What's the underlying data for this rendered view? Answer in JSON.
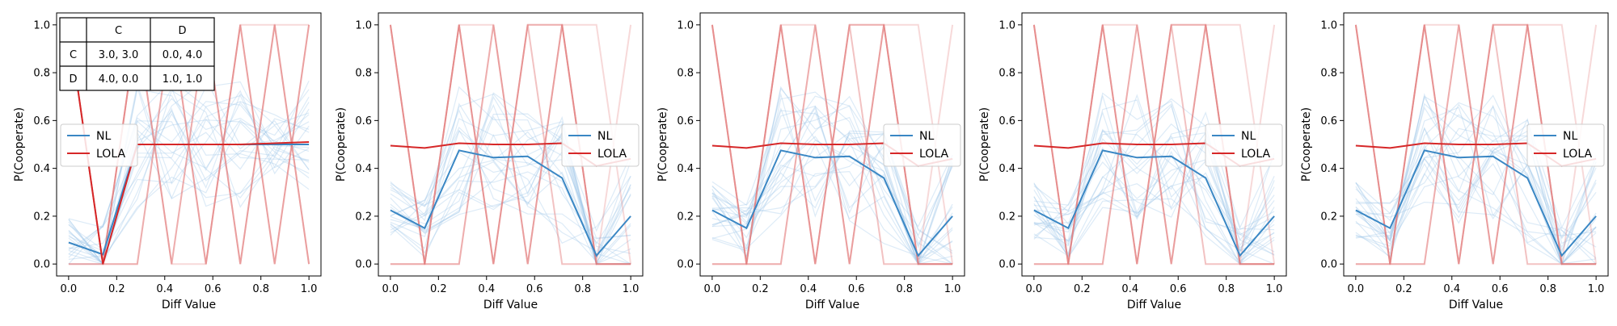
{
  "payoff_table": {
    "col_headers": [
      "",
      "C",
      "D"
    ],
    "rows": [
      {
        "label": "C",
        "cells": [
          "3.0, 3.0",
          "0.0, 4.0"
        ]
      },
      {
        "label": "D",
        "cells": [
          "4.0, 0.0",
          "1.0, 1.0"
        ]
      }
    ]
  },
  "colors": {
    "nl": "#3a87c4",
    "lola": "#d62728",
    "nl_faint": "#9ec5e8",
    "lola_faint": "#e37777"
  },
  "chart_data": [
    {
      "type": "line",
      "xlabel": "Diff Value",
      "ylabel": "P(Cooperate)",
      "xlim": [
        -0.05,
        1.05
      ],
      "ylim": [
        -0.05,
        1.05
      ],
      "xticks": [
        "0.0",
        "0.2",
        "0.4",
        "0.6",
        "0.8",
        "1.0"
      ],
      "yticks": [
        "0.0",
        "0.2",
        "0.4",
        "0.6",
        "0.8",
        "1.0"
      ],
      "legend": "center-left",
      "x": [
        0,
        0.1429,
        0.2857,
        0.4286,
        0.5714,
        0.7143,
        0.8571,
        1.0
      ],
      "series": [
        {
          "name": "NL",
          "values": [
            0.09,
            0.04,
            0.5,
            0.5,
            0.5,
            0.5,
            0.5,
            0.5
          ]
        },
        {
          "name": "LOLA",
          "values": [
            1.0,
            0.0,
            0.5,
            0.5,
            0.5,
            0.5,
            0.505,
            0.51
          ]
        }
      ]
    },
    {
      "type": "line",
      "xlabel": "Diff Value",
      "ylabel": "P(Cooperate)",
      "xlim": [
        -0.05,
        1.05
      ],
      "ylim": [
        -0.05,
        1.05
      ],
      "xticks": [
        "0.0",
        "0.2",
        "0.4",
        "0.6",
        "0.8",
        "1.0"
      ],
      "yticks": [
        "0.0",
        "0.2",
        "0.4",
        "0.6",
        "0.8",
        "1.0"
      ],
      "legend": "center-right",
      "x": [
        0,
        0.1429,
        0.2857,
        0.4286,
        0.5714,
        0.7143,
        0.8571,
        1.0
      ],
      "series": [
        {
          "name": "NL",
          "values": [
            0.225,
            0.15,
            0.475,
            0.445,
            0.45,
            0.36,
            0.035,
            0.2
          ]
        },
        {
          "name": "LOLA",
          "values": [
            0.495,
            0.485,
            0.505,
            0.5,
            0.5,
            0.505,
            0.41,
            0.44
          ]
        }
      ]
    },
    {
      "type": "line",
      "xlabel": "Diff Value",
      "ylabel": "P(Cooperate)",
      "xlim": [
        -0.05,
        1.05
      ],
      "ylim": [
        -0.05,
        1.05
      ],
      "xticks": [
        "0.0",
        "0.2",
        "0.4",
        "0.6",
        "0.8",
        "1.0"
      ],
      "yticks": [
        "0.0",
        "0.2",
        "0.4",
        "0.6",
        "0.8",
        "1.0"
      ],
      "legend": "center-right",
      "x": [
        0,
        0.1429,
        0.2857,
        0.4286,
        0.5714,
        0.7143,
        0.8571,
        1.0
      ],
      "series": [
        {
          "name": "NL",
          "values": [
            0.225,
            0.15,
            0.475,
            0.445,
            0.45,
            0.36,
            0.035,
            0.2
          ]
        },
        {
          "name": "LOLA",
          "values": [
            0.495,
            0.485,
            0.505,
            0.5,
            0.5,
            0.505,
            0.41,
            0.44
          ]
        }
      ]
    },
    {
      "type": "line",
      "xlabel": "Diff Value",
      "ylabel": "P(Cooperate)",
      "xlim": [
        -0.05,
        1.05
      ],
      "ylim": [
        -0.05,
        1.05
      ],
      "xticks": [
        "0.0",
        "0.2",
        "0.4",
        "0.6",
        "0.8",
        "1.0"
      ],
      "yticks": [
        "0.0",
        "0.2",
        "0.4",
        "0.6",
        "0.8",
        "1.0"
      ],
      "legend": "center-right",
      "x": [
        0,
        0.1429,
        0.2857,
        0.4286,
        0.5714,
        0.7143,
        0.8571,
        1.0
      ],
      "series": [
        {
          "name": "NL",
          "values": [
            0.225,
            0.15,
            0.475,
            0.445,
            0.45,
            0.36,
            0.035,
            0.2
          ]
        },
        {
          "name": "LOLA",
          "values": [
            0.495,
            0.485,
            0.505,
            0.5,
            0.5,
            0.505,
            0.41,
            0.44
          ]
        }
      ]
    },
    {
      "type": "line",
      "xlabel": "Diff Value",
      "ylabel": "P(Cooperate)",
      "xlim": [
        -0.05,
        1.05
      ],
      "ylim": [
        -0.05,
        1.05
      ],
      "xticks": [
        "0.0",
        "0.2",
        "0.4",
        "0.6",
        "0.8",
        "1.0"
      ],
      "yticks": [
        "0.0",
        "0.2",
        "0.4",
        "0.6",
        "0.8",
        "1.0"
      ],
      "legend": "center-right",
      "x": [
        0,
        0.1429,
        0.2857,
        0.4286,
        0.5714,
        0.7143,
        0.8571,
        1.0
      ],
      "series": [
        {
          "name": "NL",
          "values": [
            0.225,
            0.15,
            0.475,
            0.445,
            0.45,
            0.36,
            0.035,
            0.2
          ]
        },
        {
          "name": "LOLA",
          "values": [
            0.495,
            0.485,
            0.505,
            0.5,
            0.5,
            0.505,
            0.41,
            0.44
          ]
        }
      ]
    }
  ]
}
